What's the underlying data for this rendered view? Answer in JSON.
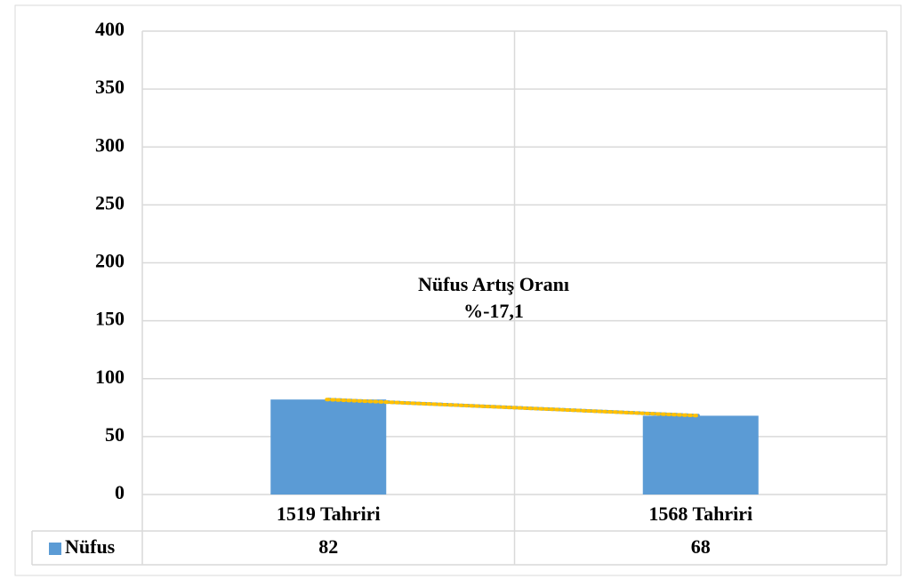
{
  "chart_data": {
    "type": "bar",
    "categories": [
      "1519 Tahriri",
      "1568 Tahriri"
    ],
    "series": [
      {
        "name": "Nüfus",
        "color": "#5b9bd5",
        "values": [
          82,
          68
        ]
      }
    ],
    "ylim": [
      0,
      400
    ],
    "yticks": [
      0,
      50,
      100,
      150,
      200,
      250,
      300,
      350,
      400
    ],
    "grid": true,
    "trendline": {
      "color": "#ffc000",
      "style": "dotted"
    },
    "annotations": [
      "Nüfus Artış Oranı",
      "%-17,1"
    ],
    "data_table": true
  }
}
